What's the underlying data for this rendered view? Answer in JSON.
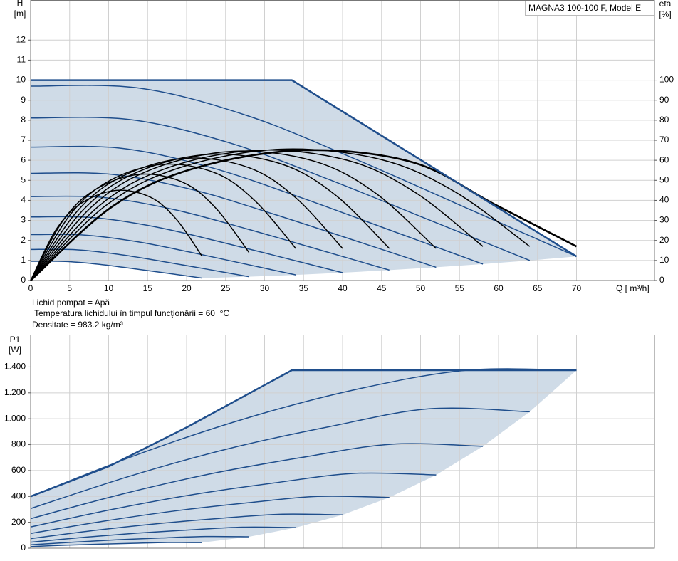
{
  "chart_data": [
    {
      "type": "line",
      "annotation": "MAGNA3 100-100 F, Model E",
      "y_label": "H",
      "y_unit": "[m]",
      "y2_label": "eta",
      "y2_unit": "[%]",
      "x_label": "Q [ m³/h]",
      "notes": [
        "Lichid pompat = Apă",
        " Temperatura lichidului în timpul funcţionării = 60  °C",
        "Densitate = 983.2  kg/m³"
      ],
      "xlim": [
        0,
        80
      ],
      "xticks": [
        0,
        5,
        10,
        15,
        20,
        25,
        30,
        35,
        40,
        45,
        50,
        55,
        60,
        65,
        70
      ],
      "ylim": [
        0,
        14
      ],
      "yticks": [
        0,
        1,
        2,
        3,
        4,
        5,
        6,
        7,
        8,
        9,
        10,
        11,
        12
      ],
      "y2lim": [
        0,
        140
      ],
      "y2ticks": [
        0,
        10,
        20,
        30,
        40,
        50,
        60,
        70,
        80,
        90,
        100
      ],
      "grid": true,
      "area_color": "#cfdbe7",
      "envelope": {
        "x": [
          0,
          33.5,
          70
        ],
        "values": [
          10,
          10,
          1.2
        ],
        "color": "#1f4e8c"
      },
      "series": [
        {
          "color": "#1f4e8c",
          "x": [
            0,
            14,
            28,
            42,
            56,
            70
          ],
          "values": [
            9.7,
            9.6,
            8.2,
            6.0,
            3.6,
            1.2
          ]
        },
        {
          "color": "#1f4e8c",
          "x": [
            0,
            12.8,
            25.6,
            38.4,
            51.2,
            64
          ],
          "values": [
            8.11,
            8.03,
            6.86,
            5.02,
            3.01,
            1.0
          ]
        },
        {
          "color": "#1f4e8c",
          "x": [
            0,
            11.6,
            23.2,
            34.8,
            46.4,
            58
          ],
          "values": [
            6.66,
            6.6,
            5.63,
            4.12,
            2.47,
            0.82
          ]
        },
        {
          "color": "#1f4e8c",
          "x": [
            0,
            10.4,
            20.8,
            31.2,
            41.6,
            52
          ],
          "values": [
            5.35,
            5.3,
            4.53,
            3.31,
            1.99,
            0.66
          ]
        },
        {
          "color": "#1f4e8c",
          "x": [
            0,
            9.2,
            18.4,
            27.6,
            36.8,
            46
          ],
          "values": [
            4.19,
            4.15,
            3.54,
            2.59,
            1.56,
            0.52
          ]
        },
        {
          "color": "#1f4e8c",
          "x": [
            0,
            8,
            16,
            24,
            32,
            40
          ],
          "values": [
            3.17,
            3.14,
            2.68,
            1.96,
            1.18,
            0.39
          ]
        },
        {
          "color": "#1f4e8c",
          "x": [
            0,
            6.8,
            13.6,
            20.4,
            27.2,
            34
          ],
          "values": [
            2.29,
            2.27,
            1.94,
            1.42,
            0.85,
            0.28
          ]
        },
        {
          "color": "#1f4e8c",
          "x": [
            0,
            5.6,
            11.2,
            16.8,
            22.4,
            28
          ],
          "values": [
            1.55,
            1.54,
            1.31,
            0.96,
            0.58,
            0.19
          ]
        },
        {
          "color": "#1f4e8c",
          "x": [
            0,
            4.4,
            8.8,
            13.2,
            17.6,
            22
          ],
          "values": [
            0.96,
            0.95,
            0.81,
            0.59,
            0.36,
            0.12
          ]
        },
        {
          "color": "#000000",
          "axis": "y2",
          "x": [
            0,
            3.3,
            6.6,
            11,
            15.4,
            18.7,
            22
          ],
          "values": [
            0,
            25.6,
            38.8,
            45,
            41.5,
            30.5,
            12
          ]
        },
        {
          "color": "#000000",
          "axis": "y2",
          "x": [
            0,
            4.2,
            8.4,
            14,
            19.6,
            23.8,
            28
          ],
          "values": [
            0,
            30.2,
            45.6,
            53,
            48.9,
            35.9,
            14
          ]
        },
        {
          "color": "#000000",
          "axis": "y2",
          "x": [
            0,
            5.1,
            10.2,
            17,
            23.8,
            28.9,
            34
          ],
          "values": [
            0,
            33,
            50,
            58,
            53.5,
            39.3,
            16
          ]
        },
        {
          "color": "#000000",
          "axis": "y2",
          "x": [
            0,
            6,
            12,
            20,
            28,
            34,
            40
          ],
          "values": [
            0,
            34.7,
            52.5,
            61,
            56.3,
            41.3,
            16
          ]
        },
        {
          "color": "#000000",
          "axis": "y2",
          "x": [
            0,
            6.9,
            13.8,
            23,
            32.2,
            39.1,
            46
          ],
          "values": [
            0,
            35.9,
            54.3,
            63,
            58.1,
            42.6,
            16
          ]
        },
        {
          "color": "#000000",
          "axis": "y2",
          "x": [
            0,
            7.8,
            15.6,
            26,
            36.4,
            44.2,
            52
          ],
          "values": [
            0,
            36.7,
            55.6,
            64.5,
            59.5,
            43.7,
            16
          ]
        },
        {
          "color": "#000000",
          "axis": "y2",
          "x": [
            0,
            8.7,
            17.4,
            29,
            40.6,
            49.3,
            58
          ],
          "values": [
            0,
            37,
            56,
            65,
            60,
            44,
            17
          ]
        },
        {
          "color": "#000000",
          "axis": "y2",
          "x": [
            0,
            9.6,
            19.2,
            32,
            44.8,
            54.4,
            64
          ],
          "values": [
            0,
            37.3,
            56.4,
            65.5,
            60.5,
            44.3,
            17
          ]
        },
        {
          "color": "#000000",
          "axis": "y2",
          "x": [
            0,
            10.5,
            21,
            35,
            49,
            59.5,
            70
          ],
          "values": [
            0,
            37,
            56,
            65,
            59,
            38,
            17
          ]
        }
      ]
    },
    {
      "type": "line",
      "y_label": "P1",
      "y_unit": "[W]",
      "xlim": [
        0,
        80
      ],
      "xticks": [
        0,
        5,
        10,
        15,
        20,
        25,
        30,
        35,
        40,
        45,
        50,
        55,
        60,
        65,
        70
      ],
      "x_tick_labels": false,
      "ylim": [
        0,
        1650
      ],
      "yticks": [
        0,
        200,
        400,
        600,
        800,
        {
          "value": 1000,
          "label": "1.000"
        },
        {
          "value": 1200,
          "label": "1.200"
        },
        {
          "value": 1400,
          "label": "1.400"
        }
      ],
      "grid": true,
      "area_color": "#cfdbe7",
      "envelope": {
        "x": [
          0,
          10,
          20,
          33.5,
          70
        ],
        "values": [
          400,
          631,
          933,
          1375,
          1375
        ],
        "color": "#1f4e8c"
      },
      "series": [
        {
          "color": "#1f4e8c",
          "x": [
            0,
            14,
            28,
            42,
            56,
            70
          ],
          "values": [
            400,
            730,
            1010,
            1230,
            1375,
            1375
          ]
        },
        {
          "color": "#1f4e8c",
          "x": [
            0,
            12.8,
            25.6,
            38.4,
            51.2,
            64
          ],
          "values": [
            306,
            558,
            772,
            940,
            1077,
            1054
          ]
        },
        {
          "color": "#1f4e8c",
          "x": [
            0,
            11.6,
            23.2,
            34.8,
            46.4,
            58
          ],
          "values": [
            228,
            416,
            576,
            701,
            804,
            787
          ]
        },
        {
          "color": "#1f4e8c",
          "x": [
            0,
            10.4,
            20.8,
            31.2,
            41.6,
            52
          ],
          "values": [
            164,
            299,
            414,
            504,
            578,
            566
          ]
        },
        {
          "color": "#1f4e8c",
          "x": [
            0,
            9.2,
            18.4,
            27.6,
            36.8,
            46
          ],
          "values": [
            114,
            207,
            287,
            349,
            400,
            392
          ]
        },
        {
          "color": "#1f4e8c",
          "x": [
            0,
            8,
            16,
            24,
            32,
            40
          ],
          "values": [
            74,
            136,
            188,
            229,
            262,
            257
          ]
        },
        {
          "color": "#1f4e8c",
          "x": [
            0,
            6.8,
            13.6,
            20.4,
            27.2,
            34
          ],
          "values": [
            46,
            84,
            116,
            141,
            162,
            159
          ]
        },
        {
          "color": "#1f4e8c",
          "x": [
            0,
            5.6,
            11.2,
            16.8,
            22.4,
            28
          ],
          "values": [
            26,
            47,
            65,
            79,
            90,
            88
          ]
        },
        {
          "color": "#1f4e8c",
          "x": [
            0,
            4.4,
            8.8,
            13.2,
            17.6,
            22
          ],
          "values": [
            12,
            23,
            31,
            38,
            44,
            43
          ]
        }
      ]
    }
  ]
}
